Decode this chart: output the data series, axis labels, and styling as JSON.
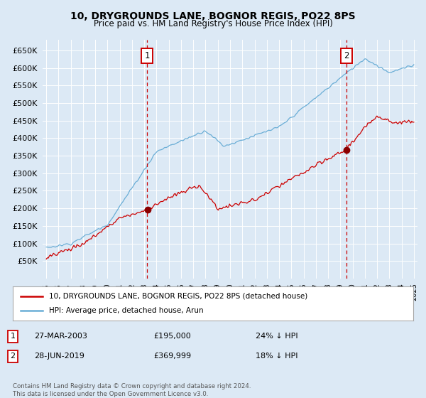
{
  "title": "10, DRYGROUNDS LANE, BOGNOR REGIS, PO22 8PS",
  "subtitle": "Price paid vs. HM Land Registry's House Price Index (HPI)",
  "background_color": "#dce9f5",
  "plot_bg_color": "#dce9f5",
  "grid_color": "#ffffff",
  "hpi_color": "#6baed6",
  "price_color": "#cc0000",
  "ylim": [
    0,
    680000
  ],
  "yticks": [
    0,
    50000,
    100000,
    150000,
    200000,
    250000,
    300000,
    350000,
    400000,
    450000,
    500000,
    550000,
    600000,
    650000
  ],
  "xlim_start": 1994.7,
  "xlim_end": 2025.3,
  "marker1_x": 2003.24,
  "marker1_y": 195000,
  "marker2_x": 2019.49,
  "marker2_y": 369999,
  "legend_line1": "10, DRYGROUNDS LANE, BOGNOR REGIS, PO22 8PS (detached house)",
  "legend_line2": "HPI: Average price, detached house, Arun",
  "marker1_date": "27-MAR-2003",
  "marker1_price": "£195,000",
  "marker1_hpi": "24% ↓ HPI",
  "marker2_date": "28-JUN-2019",
  "marker2_price": "£369,999",
  "marker2_hpi": "18% ↓ HPI",
  "footnote": "Contains HM Land Registry data © Crown copyright and database right 2024.\nThis data is licensed under the Open Government Licence v3.0."
}
